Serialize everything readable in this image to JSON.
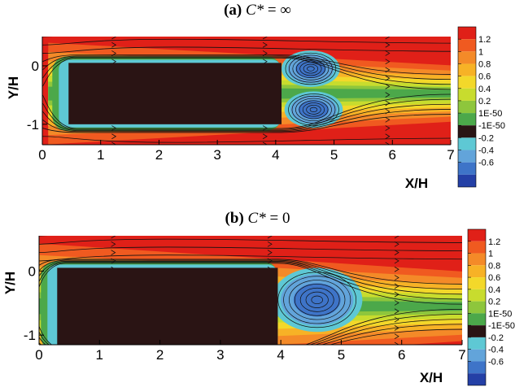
{
  "chart_data": [
    {
      "type": "heatmap",
      "panel_id": "a",
      "title_prefix": "(a)",
      "title_var": "C*",
      "title_eq": "=",
      "title_value": "∞",
      "xlabel": "X/H",
      "ylabel": "Y/H",
      "xlim": [
        0,
        7
      ],
      "ylim": [
        -1.35,
        0.5
      ],
      "x_ticks": [
        0,
        1,
        2,
        3,
        4,
        5,
        6,
        7
      ],
      "y_ticks": [
        0,
        -1
      ],
      "body": {
        "x0": 0.45,
        "x1": 4.1,
        "y_top": 0.05,
        "y_bottom": -1.0
      },
      "recirculation_vortices": [
        {
          "x": 4.6,
          "y": -0.05,
          "rx": 0.4,
          "ry": 0.25
        },
        {
          "x": 4.65,
          "y": -0.75,
          "rx": 0.4,
          "ry": 0.25
        }
      ],
      "colorbar": {
        "levels": [
          "1.2",
          "1",
          "0.8",
          "0.6",
          "0.4",
          "0.2",
          "1E-50",
          "-1E-50",
          "-0.2",
          "-0.4",
          "-0.6"
        ],
        "colors": [
          "#e02018",
          "#f05a20",
          "#f48a28",
          "#f7b226",
          "#f3d82a",
          "#c8dc2e",
          "#8ec63c",
          "#4ca84a",
          "#2a1414",
          "#5ec8d4",
          "#62a4da",
          "#3e74c8",
          "#2440a6"
        ]
      }
    },
    {
      "type": "heatmap",
      "panel_id": "b",
      "title_prefix": "(b)",
      "title_var": "C*",
      "title_eq": "=",
      "title_value": "0",
      "xlabel": "X/H",
      "ylabel": "Y/H",
      "xlim": [
        0,
        7
      ],
      "ylim": [
        -1.15,
        0.55
      ],
      "x_ticks": [
        0,
        1,
        2,
        3,
        4,
        5,
        6,
        7
      ],
      "y_ticks": [
        0,
        -1
      ],
      "body": {
        "x0": 0.3,
        "x1": 3.95,
        "y_top": 0.05,
        "y_bottom": -1.15
      },
      "recirculation_vortices": [
        {
          "x": 4.6,
          "y": -0.45,
          "rx": 0.6,
          "ry": 0.4
        }
      ],
      "colorbar": {
        "levels": [
          "1.2",
          "1",
          "0.8",
          "0.6",
          "0.4",
          "0.2",
          "1E-50",
          "-1E-50",
          "-0.2",
          "-0.4",
          "-0.6"
        ],
        "colors": [
          "#e02018",
          "#f05a20",
          "#f48a28",
          "#f7b226",
          "#f3d82a",
          "#c8dc2e",
          "#8ec63c",
          "#4ca84a",
          "#2a1414",
          "#5ec8d4",
          "#62a4da",
          "#3e74c8",
          "#2440a6"
        ]
      }
    }
  ]
}
